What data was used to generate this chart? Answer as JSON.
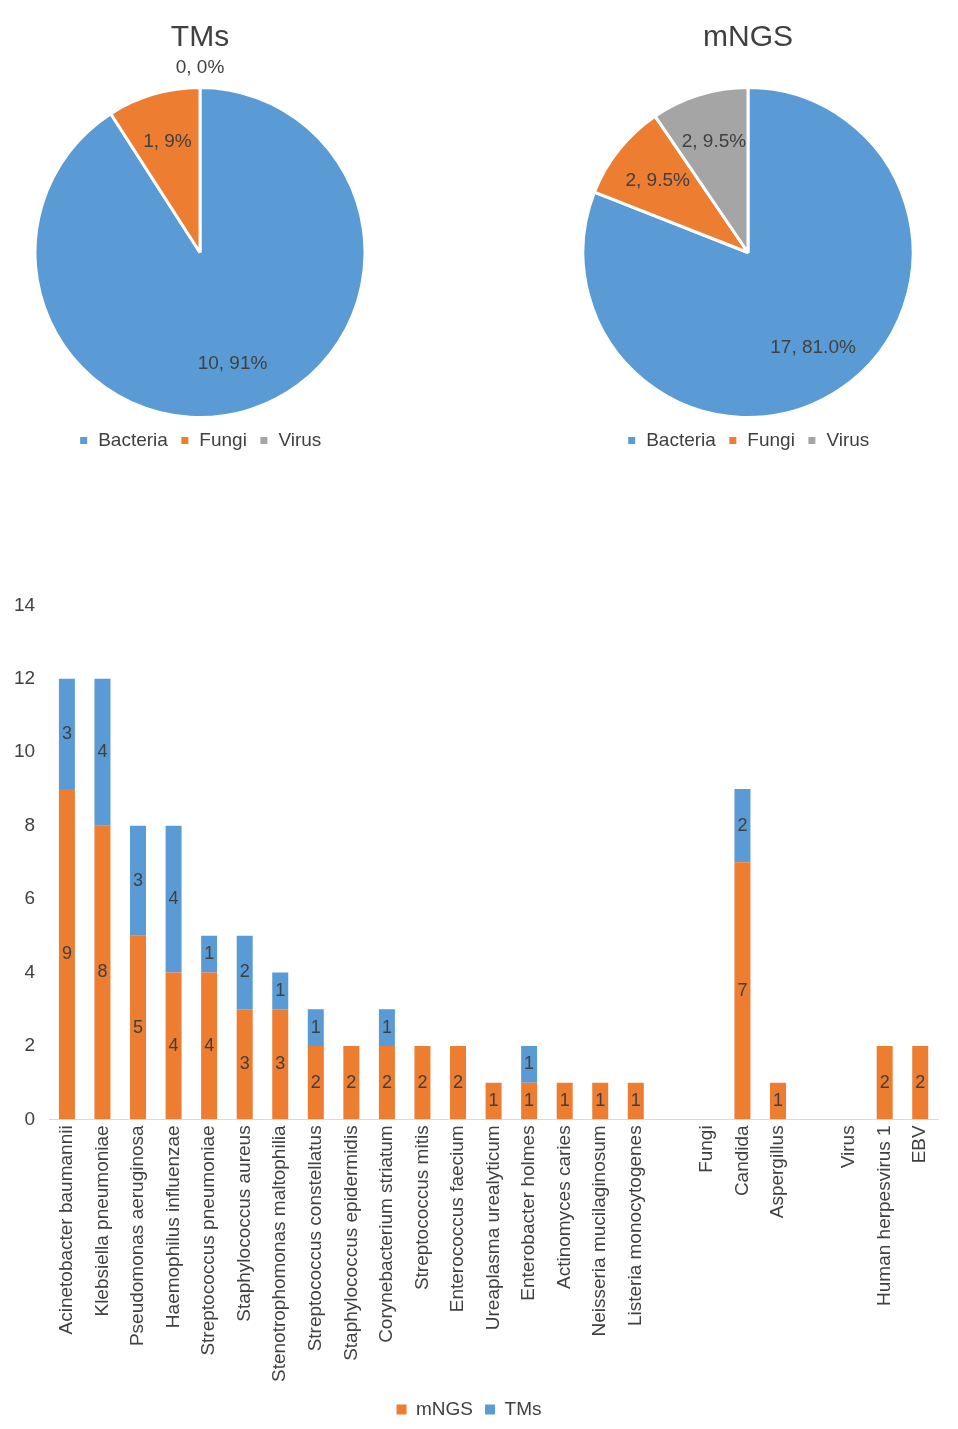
{
  "chart_data": [
    {
      "type": "pie",
      "title": "TMs",
      "categories": [
        "Bacteria",
        "Fungi",
        "Virus"
      ],
      "values": [
        10,
        1,
        0
      ],
      "colors": [
        "#5b9bd5",
        "#ed7d31",
        "#a5a5a5"
      ],
      "value_labels": [
        "10, 91%",
        "1, 9%",
        "0, 0%"
      ],
      "legend": "bottom"
    },
    {
      "type": "pie",
      "title": "mNGS",
      "categories": [
        "Bacteria",
        "Fungi",
        "Virus"
      ],
      "values": [
        17,
        2,
        2
      ],
      "colors": [
        "#5b9bd5",
        "#ed7d31",
        "#a5a5a5"
      ],
      "value_labels": [
        "17, 81.0%",
        "2, 9.5%",
        "2, 9.5%"
      ],
      "legend": "bottom"
    },
    {
      "type": "bar",
      "stacked": true,
      "categories": [
        "Acinetobacter baumannii",
        "Klebsiella pneumoniae",
        "Pseudomonas aeruginosa",
        "Haemophilus influenzae",
        "Streptococcus pneumoniae",
        "Staphylococcus aureus",
        "Stenotrophomonas maltophilia",
        "Streptococcus constellatus",
        "Staphylococcus epidermidis",
        "Corynebacterium striatum",
        "Streptococcus mitis",
        "Enterococcus faecium",
        "Ureaplasma urealyticum",
        "Enterobacter holmes",
        "Actinomyces caries",
        "Neisseria mucilaginosum",
        "Listeria monocytogenes",
        null,
        "Fungi",
        "Candida",
        "Aspergillus",
        null,
        "Virus",
        "Human herpesvirus 1",
        "EBV"
      ],
      "series": [
        {
          "name": "mNGS",
          "color": "#ed7d31",
          "values": [
            9,
            8,
            5,
            4,
            4,
            3,
            3,
            2,
            2,
            2,
            2,
            2,
            1,
            1,
            1,
            1,
            1,
            null,
            null,
            7,
            1,
            null,
            null,
            2,
            2
          ]
        },
        {
          "name": "TMs",
          "color": "#5b9bd5",
          "values": [
            3,
            4,
            3,
            4,
            1,
            2,
            1,
            1,
            null,
            1,
            null,
            null,
            null,
            1,
            null,
            null,
            null,
            null,
            null,
            2,
            null,
            null,
            null,
            null,
            null
          ]
        }
      ],
      "ylim": [
        0,
        14
      ],
      "yticks": [
        0,
        2,
        4,
        6,
        8,
        10,
        12,
        14
      ],
      "grid": false,
      "data_labels": true,
      "legend": "bottom"
    }
  ]
}
